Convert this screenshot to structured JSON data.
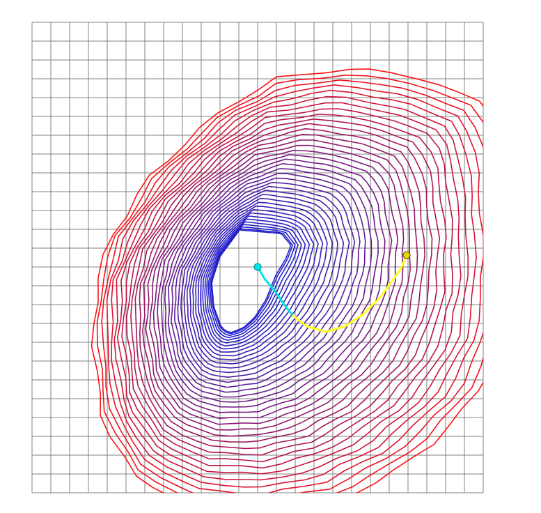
{
  "view": {
    "type": "contour-field-with-paths",
    "grid": {
      "columns": 24,
      "rows": 25,
      "line_color": "#808080"
    },
    "contours": {
      "count": 38,
      "inner_color": "#1f1fcc",
      "outer_color": "#ff1010"
    },
    "paths": [
      {
        "name": "cyan-path",
        "color": "#00e5e5",
        "marker_color": "#00e5e5"
      },
      {
        "name": "yellow-path",
        "color": "#ffff22",
        "marker_color": "#e0d800"
      }
    ]
  }
}
